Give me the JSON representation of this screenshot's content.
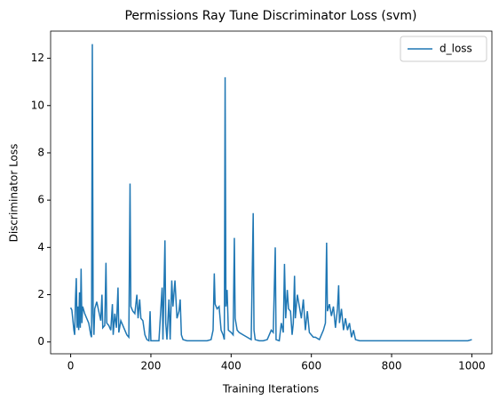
{
  "chart_data": {
    "type": "line",
    "title": "Permissions Ray Tune Discriminator Loss (svm)",
    "xlabel": "Training Iterations",
    "ylabel": "Discriminator Loss",
    "x": [
      0,
      3,
      8,
      10,
      12,
      14,
      16,
      18,
      20,
      22,
      24,
      26,
      28,
      30,
      35,
      40,
      45,
      50,
      52,
      54,
      56,
      58,
      60,
      65,
      70,
      75,
      78,
      80,
      85,
      88,
      90,
      95,
      100,
      104,
      106,
      110,
      114,
      118,
      120,
      125,
      130,
      135,
      140,
      145,
      148,
      150,
      155,
      160,
      165,
      168,
      172,
      175,
      180,
      185,
      190,
      195,
      198,
      200,
      210,
      220,
      228,
      230,
      235,
      237,
      240,
      245,
      248,
      252,
      255,
      260,
      265,
      270,
      273,
      276,
      280,
      290,
      300,
      320,
      340,
      350,
      355,
      358,
      360,
      365,
      370,
      375,
      380,
      383,
      385,
      387,
      390,
      393,
      400,
      405,
      408,
      410,
      415,
      420,
      430,
      440,
      450,
      455,
      457,
      460,
      470,
      480,
      490,
      500,
      505,
      510,
      512,
      520,
      525,
      530,
      533,
      536,
      540,
      543,
      548,
      552,
      555,
      558,
      560,
      565,
      570,
      575,
      580,
      585,
      590,
      595,
      600,
      605,
      610,
      620,
      625,
      630,
      635,
      638,
      640,
      645,
      650,
      655,
      660,
      665,
      668,
      670,
      675,
      680,
      685,
      690,
      695,
      700,
      705,
      710,
      720,
      750,
      800,
      850,
      900,
      950,
      990,
      1000
    ],
    "series": [
      {
        "name": "d_loss",
        "color": "#1f77b4",
        "values": [
          1.45,
          1.35,
          0.5,
          0.3,
          1.8,
          2.7,
          0.6,
          1.5,
          0.5,
          2.1,
          0.6,
          3.1,
          0.8,
          1.5,
          1.2,
          1.0,
          0.8,
          0.3,
          0.2,
          12.6,
          1.2,
          0.3,
          1.4,
          1.7,
          1.3,
          0.9,
          2.0,
          0.6,
          0.7,
          3.35,
          0.8,
          0.7,
          0.5,
          1.6,
          0.3,
          1.2,
          0.6,
          2.3,
          0.4,
          0.9,
          0.7,
          0.5,
          0.3,
          0.2,
          6.7,
          1.5,
          1.3,
          1.2,
          2.0,
          1.0,
          1.8,
          1.0,
          0.9,
          0.3,
          0.1,
          0.05,
          1.3,
          0.05,
          0.05,
          0.05,
          2.3,
          0.1,
          4.3,
          0.8,
          0.1,
          1.8,
          0.1,
          2.6,
          1.5,
          2.6,
          1.0,
          1.3,
          1.8,
          0.3,
          0.1,
          0.05,
          0.05,
          0.05,
          0.05,
          0.1,
          0.5,
          2.9,
          1.6,
          1.4,
          1.5,
          0.5,
          0.3,
          0.1,
          11.2,
          1.5,
          2.2,
          0.5,
          0.4,
          0.3,
          4.4,
          1.0,
          0.5,
          0.4,
          0.3,
          0.2,
          0.1,
          5.45,
          0.5,
          0.1,
          0.05,
          0.05,
          0.1,
          0.5,
          0.4,
          4.0,
          0.1,
          0.05,
          0.8,
          0.4,
          3.3,
          1.0,
          2.2,
          1.4,
          1.3,
          0.3,
          0.8,
          2.8,
          1.0,
          2.0,
          1.5,
          1.0,
          1.8,
          0.5,
          1.3,
          0.4,
          0.3,
          0.2,
          0.2,
          0.1,
          0.3,
          0.5,
          0.8,
          4.2,
          1.3,
          1.6,
          1.1,
          1.5,
          0.6,
          1.4,
          2.4,
          0.8,
          1.4,
          0.5,
          1.0,
          0.5,
          0.8,
          0.2,
          0.5,
          0.1,
          0.05,
          0.05,
          0.05,
          0.05,
          0.05,
          0.05,
          0.05,
          0.1
        ]
      }
    ],
    "xlim": [
      -50,
      1050
    ],
    "xticks": [
      0,
      200,
      400,
      600,
      800,
      1000
    ],
    "ylim": [
      -0.5,
      13.15
    ],
    "yticks": [
      0,
      2,
      4,
      6,
      8,
      10,
      12
    ],
    "legend": "upper right"
  }
}
